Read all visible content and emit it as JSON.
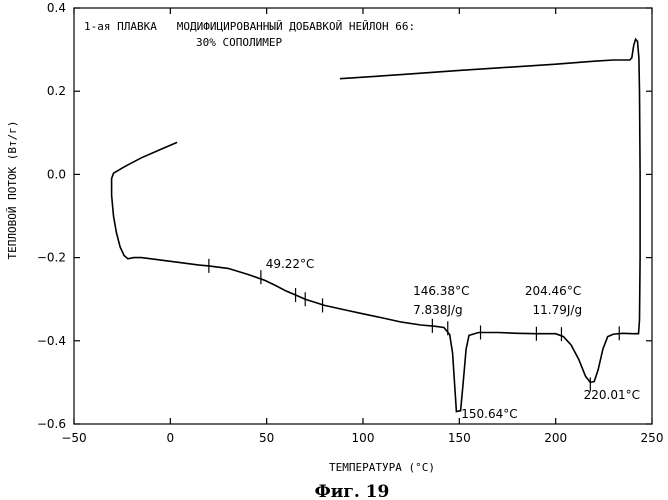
{
  "chart_data": {
    "type": "line",
    "title_line1": "1-ая ПЛАВКА   МОДИФИЦИРОВАННЫЙ ДОБАВКОЙ НЕЙЛОН 66:",
    "title_line2": "30% СОПОЛИМЕР",
    "xlabel": "ТЕМПЕРАТУРА (°C)",
    "ylabel": "ТЕПЛОВОЙ ПОТОК (Вт/г)",
    "xlim": [
      -50,
      250
    ],
    "ylim": [
      -0.6,
      0.4
    ],
    "x_ticks": [
      -50,
      0,
      50,
      100,
      150,
      200,
      250
    ],
    "x_tick_labels": [
      "−50",
      "0",
      "50",
      "100",
      "150",
      "200",
      "250"
    ],
    "y_ticks": [
      -0.6,
      -0.4,
      -0.2,
      0.0,
      0.2,
      0.4
    ],
    "y_tick_labels": [
      "−0.6",
      "−0.4",
      "−0.2",
      "0.0",
      "0.2",
      "0.4"
    ],
    "series": [
      {
        "points": [
          [
            3.5,
            0.077
          ],
          [
            -5,
            0.06
          ],
          [
            -15,
            0.04
          ],
          [
            -24,
            0.018
          ],
          [
            -29.5,
            0.003
          ],
          [
            -30.5,
            -0.01
          ],
          [
            -30.5,
            -0.05
          ],
          [
            -29.5,
            -0.1
          ],
          [
            -28,
            -0.14
          ],
          [
            -26,
            -0.175
          ],
          [
            -24,
            -0.195
          ],
          [
            -22,
            -0.203
          ],
          [
            -19,
            -0.2
          ],
          [
            -15,
            -0.2
          ],
          [
            -5,
            -0.206
          ],
          [
            5,
            -0.212
          ],
          [
            15,
            -0.218
          ],
          [
            20,
            -0.22
          ],
          [
            30,
            -0.226
          ],
          [
            40,
            -0.24
          ],
          [
            49.22,
            -0.255
          ],
          [
            55,
            -0.268
          ],
          [
            60,
            -0.28
          ],
          [
            65,
            -0.29
          ],
          [
            70,
            -0.3
          ],
          [
            80,
            -0.315
          ],
          [
            90,
            -0.325
          ],
          [
            100,
            -0.335
          ],
          [
            110,
            -0.345
          ],
          [
            120,
            -0.355
          ],
          [
            130,
            -0.362
          ],
          [
            137,
            -0.365
          ],
          [
            142,
            -0.368
          ],
          [
            145,
            -0.385
          ],
          [
            146.5,
            -0.43
          ],
          [
            147.5,
            -0.5
          ],
          [
            148.5,
            -0.57
          ],
          [
            150.64,
            -0.568
          ],
          [
            152,
            -0.5
          ],
          [
            153.5,
            -0.42
          ],
          [
            155,
            -0.387
          ],
          [
            160,
            -0.38
          ],
          [
            170,
            -0.38
          ],
          [
            180,
            -0.382
          ],
          [
            190,
            -0.383
          ],
          [
            200,
            -0.383
          ],
          [
            204,
            -0.39
          ],
          [
            208,
            -0.41
          ],
          [
            212,
            -0.445
          ],
          [
            215.5,
            -0.485
          ],
          [
            218,
            -0.5
          ],
          [
            220.01,
            -0.498
          ],
          [
            222,
            -0.47
          ],
          [
            224.5,
            -0.42
          ],
          [
            227,
            -0.39
          ],
          [
            230,
            -0.384
          ],
          [
            235,
            -0.382
          ],
          [
            240,
            -0.383
          ],
          [
            243,
            -0.383
          ],
          [
            243.5,
            -0.35
          ],
          [
            243.8,
            -0.2
          ],
          [
            243.8,
            0.0
          ],
          [
            243.5,
            0.2
          ],
          [
            243.2,
            0.28
          ],
          [
            242.5,
            0.32
          ],
          [
            241.5,
            0.325
          ],
          [
            240.5,
            0.31
          ],
          [
            239.5,
            0.28
          ],
          [
            238.5,
            0.275
          ],
          [
            230,
            0.275
          ],
          [
            220,
            0.272
          ],
          [
            200,
            0.265
          ],
          [
            150,
            0.25
          ],
          [
            120,
            0.24
          ],
          [
            88,
            0.23
          ]
        ]
      }
    ],
    "tick_marks_on_curve": [
      [
        20,
        -0.22
      ],
      [
        47,
        -0.247
      ],
      [
        65,
        -0.29
      ],
      [
        70,
        -0.3
      ],
      [
        79,
        -0.315
      ],
      [
        136,
        -0.364
      ],
      [
        144,
        -0.37
      ],
      [
        161,
        -0.38
      ],
      [
        190,
        -0.383
      ],
      [
        203,
        -0.384
      ],
      [
        218,
        -0.505
      ],
      [
        233,
        -0.382
      ]
    ],
    "annotations": [
      {
        "text": "49.22°C",
        "x": 49.5,
        "y": -0.225
      },
      {
        "text": "146.38°C",
        "x": 126,
        "y": -0.29
      },
      {
        "text": "7.838J/g",
        "x": 126,
        "y": -0.335
      },
      {
        "text": "204.46°C",
        "x": 184,
        "y": -0.29
      },
      {
        "text": "11.79J/g",
        "x": 188,
        "y": -0.335
      },
      {
        "text": "150.64°C",
        "x": 151,
        "y": -0.585
      },
      {
        "text": "220.01°C",
        "x": 214.5,
        "y": -0.54
      }
    ],
    "grid": false,
    "legend": false
  },
  "caption": "Фиг. 19"
}
